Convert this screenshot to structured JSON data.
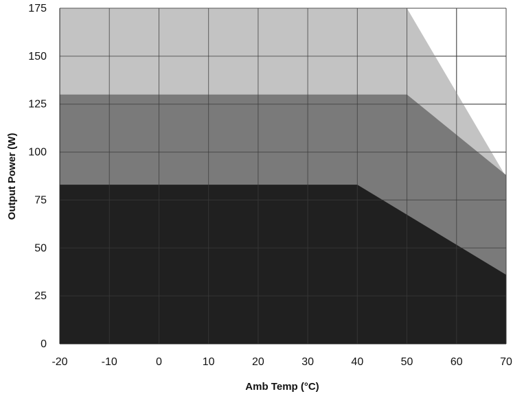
{
  "chart_data": {
    "type": "area",
    "title": "",
    "xlabel": "Amb Temp (°C)",
    "ylabel": "Output Power (W)",
    "x_ticks": [
      -20,
      -10,
      0,
      10,
      20,
      30,
      40,
      50,
      60,
      70
    ],
    "y_ticks": [
      0,
      25,
      50,
      75,
      100,
      125,
      150,
      175
    ],
    "xlim": [
      -20,
      70
    ],
    "ylim": [
      0,
      175
    ],
    "grid": true,
    "series": [
      {
        "color": "#c3c3c3",
        "points": [
          [
            -20,
            175
          ],
          [
            50,
            175
          ],
          [
            70,
            87
          ]
        ]
      },
      {
        "color": "#7a7a7a",
        "points": [
          [
            -20,
            130
          ],
          [
            50,
            130
          ],
          [
            70,
            88
          ]
        ]
      },
      {
        "color": "#202020",
        "points": [
          [
            -20,
            83
          ],
          [
            40,
            83
          ],
          [
            70,
            36
          ]
        ]
      }
    ]
  }
}
